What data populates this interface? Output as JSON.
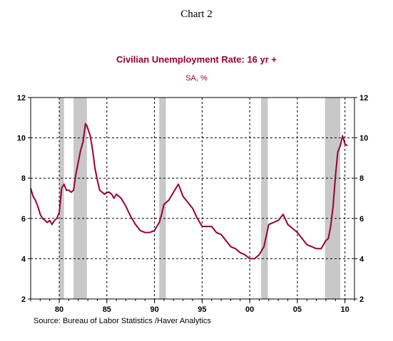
{
  "caption": "Chart 2",
  "source": "Source:  Bureau of Labor Statistics /Haver Analytics",
  "colors": {
    "series": "#990033",
    "recession": "#c8c8c8",
    "grid": "#000000"
  },
  "chart_data": {
    "type": "line",
    "title": "Civilian Unemployment Rate: 16 yr +",
    "subtitle": "SA, %",
    "xlabel": "",
    "ylabel": "",
    "xlim": [
      1977.0,
      2011.0
    ],
    "ylim": [
      2,
      12
    ],
    "y_ticks": [
      2,
      4,
      6,
      8,
      10,
      12
    ],
    "x_ticks": [
      {
        "year": 1980,
        "label": "80"
      },
      {
        "year": 1985,
        "label": "85"
      },
      {
        "year": 1990,
        "label": "90"
      },
      {
        "year": 1995,
        "label": "95"
      },
      {
        "year": 2000,
        "label": "00"
      },
      {
        "year": 2005,
        "label": "05"
      },
      {
        "year": 2010,
        "label": "10"
      }
    ],
    "grid": true,
    "recessions": [
      [
        1980.0,
        1980.5
      ],
      [
        1981.5,
        1982.9
      ],
      [
        1990.5,
        1991.2
      ],
      [
        2001.2,
        2001.9
      ],
      [
        2007.9,
        2009.5
      ]
    ],
    "series": [
      {
        "x": [
          1977.0,
          1977.25,
          1977.5,
          1977.75,
          1978.0,
          1978.25,
          1978.5,
          1978.75,
          1979.0,
          1979.25,
          1979.5,
          1979.75,
          1980.0,
          1980.25,
          1980.5,
          1980.75,
          1981.0,
          1981.25,
          1981.5,
          1981.75,
          1982.0,
          1982.25,
          1982.5,
          1982.75,
          1982.9,
          1983.25,
          1983.5,
          1983.75,
          1984.0,
          1984.25,
          1984.5,
          1984.75,
          1985.0,
          1985.25,
          1985.5,
          1985.75,
          1986.0,
          1986.5,
          1987.0,
          1987.5,
          1988.0,
          1988.5,
          1989.0,
          1989.5,
          1990.0,
          1990.5,
          1990.75,
          1991.0,
          1991.5,
          1992.0,
          1992.5,
          1993.0,
          1993.5,
          1994.0,
          1994.5,
          1995.0,
          1995.5,
          1996.0,
          1996.5,
          1997.0,
          1997.5,
          1998.0,
          1998.5,
          1999.0,
          1999.5,
          2000.0,
          2000.5,
          2001.0,
          2001.5,
          2002.0,
          2002.5,
          2003.0,
          2003.5,
          2004.0,
          2004.5,
          2005.0,
          2005.5,
          2006.0,
          2006.5,
          2007.0,
          2007.5,
          2008.0,
          2008.25,
          2008.5,
          2008.75,
          2009.0,
          2009.25,
          2009.5,
          2009.75,
          2010.0,
          2010.25
        ],
        "values": [
          7.5,
          7.1,
          6.9,
          6.6,
          6.2,
          6.0,
          5.9,
          5.8,
          5.9,
          5.7,
          5.9,
          6.0,
          6.3,
          7.5,
          7.7,
          7.4,
          7.4,
          7.3,
          7.4,
          8.2,
          8.8,
          9.4,
          9.8,
          10.7,
          10.6,
          10.1,
          9.4,
          8.5,
          7.9,
          7.4,
          7.3,
          7.2,
          7.3,
          7.3,
          7.2,
          7.0,
          7.2,
          7.0,
          6.6,
          6.1,
          5.7,
          5.4,
          5.3,
          5.3,
          5.4,
          5.8,
          6.2,
          6.7,
          6.9,
          7.3,
          7.7,
          7.1,
          6.8,
          6.5,
          6.0,
          5.6,
          5.6,
          5.6,
          5.3,
          5.2,
          4.9,
          4.6,
          4.5,
          4.3,
          4.2,
          4.0,
          4.0,
          4.2,
          4.6,
          5.7,
          5.8,
          5.9,
          6.2,
          5.7,
          5.5,
          5.3,
          5.0,
          4.7,
          4.6,
          4.5,
          4.5,
          4.9,
          5.0,
          5.6,
          6.6,
          8.1,
          9.3,
          9.6,
          10.1,
          9.7,
          9.6
        ]
      }
    ]
  }
}
